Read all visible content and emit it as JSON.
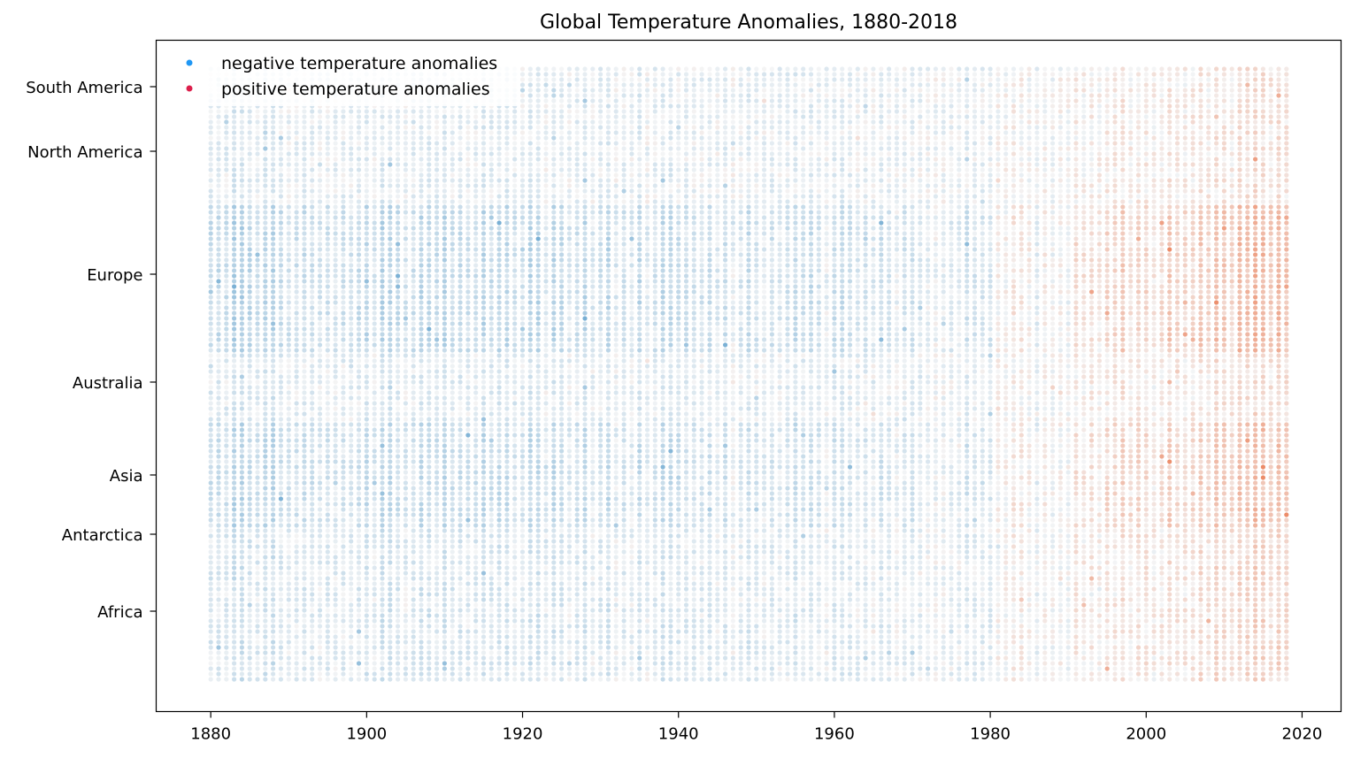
{
  "chart_data": {
    "type": "scatter",
    "title": "Global Temperature Anomalies, 1880-2018",
    "xlabel": "",
    "ylabel": "",
    "xlim": [
      1873,
      2025
    ],
    "x_ticks": [
      1880,
      1900,
      1920,
      1940,
      1960,
      1980,
      2000,
      2020
    ],
    "x_range_years": [
      1880,
      2018
    ],
    "y_categories": [
      "South America",
      "North America",
      "Europe",
      "Australia",
      "Asia",
      "Antarctica",
      "Africa"
    ],
    "grid": false,
    "legend": {
      "placement": "top-left",
      "entries": [
        {
          "label": "negative temperature anomalies",
          "color": "#1f97f4"
        },
        {
          "label": "positive temperature anomalies",
          "color": "#dc1f4b"
        }
      ]
    },
    "colors": {
      "negative_strong": "#2b83ba",
      "negative_light": "#d6e8f3",
      "neutral": "#f2f2f2",
      "positive_light": "#f9d8c8",
      "positive_strong": "#d7502a"
    },
    "series": [
      {
        "name": "negative temperature anomalies",
        "trend": "dominant from 1880 to ~1980"
      },
      {
        "name": "positive temperature anomalies",
        "trend": "dominant from ~1988 to 2018"
      }
    ]
  }
}
